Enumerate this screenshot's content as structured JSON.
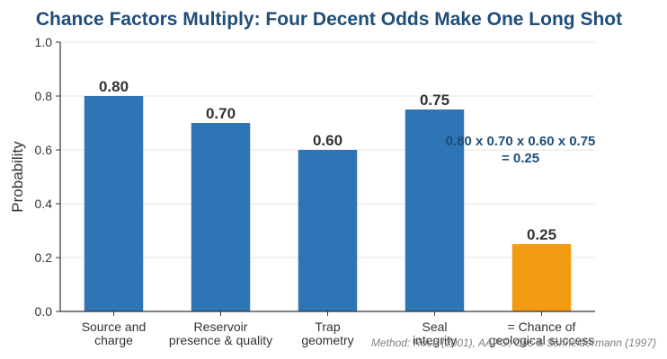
{
  "chart_data": {
    "type": "bar",
    "title": "Chance Factors Multiply: Four Decent Odds Make One Long Shot",
    "xlabel": "",
    "ylabel": "Probability",
    "ylim": [
      0,
      1.0
    ],
    "yticks": [
      "0.0",
      "0.2",
      "0.4",
      "0.6",
      "0.8",
      "1.0"
    ],
    "grid": true,
    "categories": [
      [
        "Source and",
        "charge"
      ],
      [
        "Reservoir",
        "presence & quality"
      ],
      [
        "Trap",
        "geometry"
      ],
      [
        "Seal",
        "integrity"
      ],
      [
        "= Chance of",
        "geological success"
      ]
    ],
    "values": [
      0.8,
      0.7,
      0.6,
      0.75,
      0.25
    ],
    "value_labels": [
      "0.80",
      "0.70",
      "0.60",
      "0.75",
      "0.25"
    ],
    "colors": [
      "#2e75b6",
      "#2e75b6",
      "#2e75b6",
      "#2e75b6",
      "#f39c12"
    ],
    "annotation": [
      "0.80 x 0.70 x 0.60 x 0.75",
      "= 0.25"
    ],
    "source_note": "Method: Rose (2001), AAPG; Otis & Schneidermann (1997)"
  }
}
